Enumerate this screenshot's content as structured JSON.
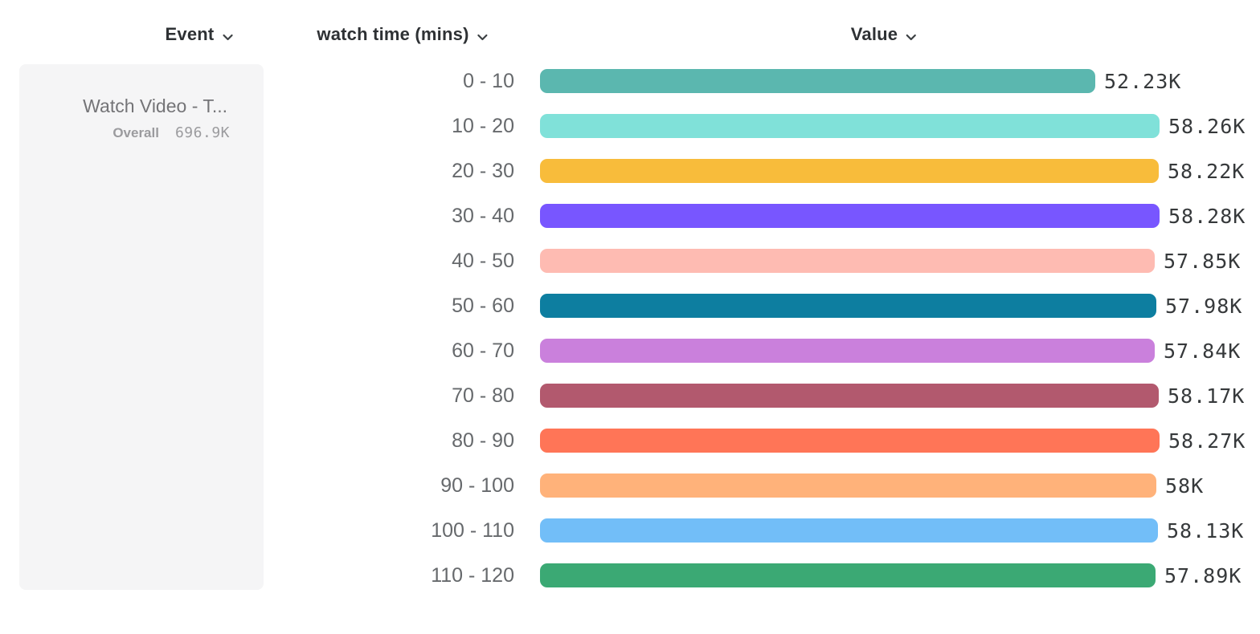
{
  "header": {
    "columns": [
      {
        "label": "Event"
      },
      {
        "label": "watch time (mins)"
      },
      {
        "label": "Value"
      }
    ]
  },
  "event_panel": {
    "name": "Watch Video - T...",
    "overall_label": "Overall",
    "overall_value": "696.9K"
  },
  "icons": {
    "chevron": "chevron-down-icon"
  },
  "chart_data": {
    "type": "bar",
    "orientation": "horizontal",
    "title": "",
    "xlabel": "Value",
    "ylabel": "watch time (mins)",
    "xlim": [
      0,
      58280
    ],
    "grid": false,
    "legend": false,
    "categories": [
      "0 - 10",
      "10 - 20",
      "20 - 30",
      "30 - 40",
      "40 - 50",
      "50 - 60",
      "60 - 70",
      "70 - 80",
      "80 - 90",
      "90 - 100",
      "100 - 110",
      "110 - 120"
    ],
    "values": [
      52230,
      58260,
      58220,
      58280,
      57850,
      57980,
      57840,
      58170,
      58270,
      58000,
      58130,
      57890
    ],
    "value_labels": [
      "52.23K",
      "58.26K",
      "58.22K",
      "58.28K",
      "57.85K",
      "57.98K",
      "57.84K",
      "58.17K",
      "58.27K",
      "58K",
      "58.13K",
      "57.89K"
    ],
    "bar_colors": [
      "#5bb7af",
      "#80e1d9",
      "#f8bc3b",
      "#7856ff",
      "#febbb2",
      "#0d7ea0",
      "#ca80dc",
      "#b2596e",
      "#ff7557",
      "#ffb27a",
      "#72bef8",
      "#3ba974"
    ]
  }
}
